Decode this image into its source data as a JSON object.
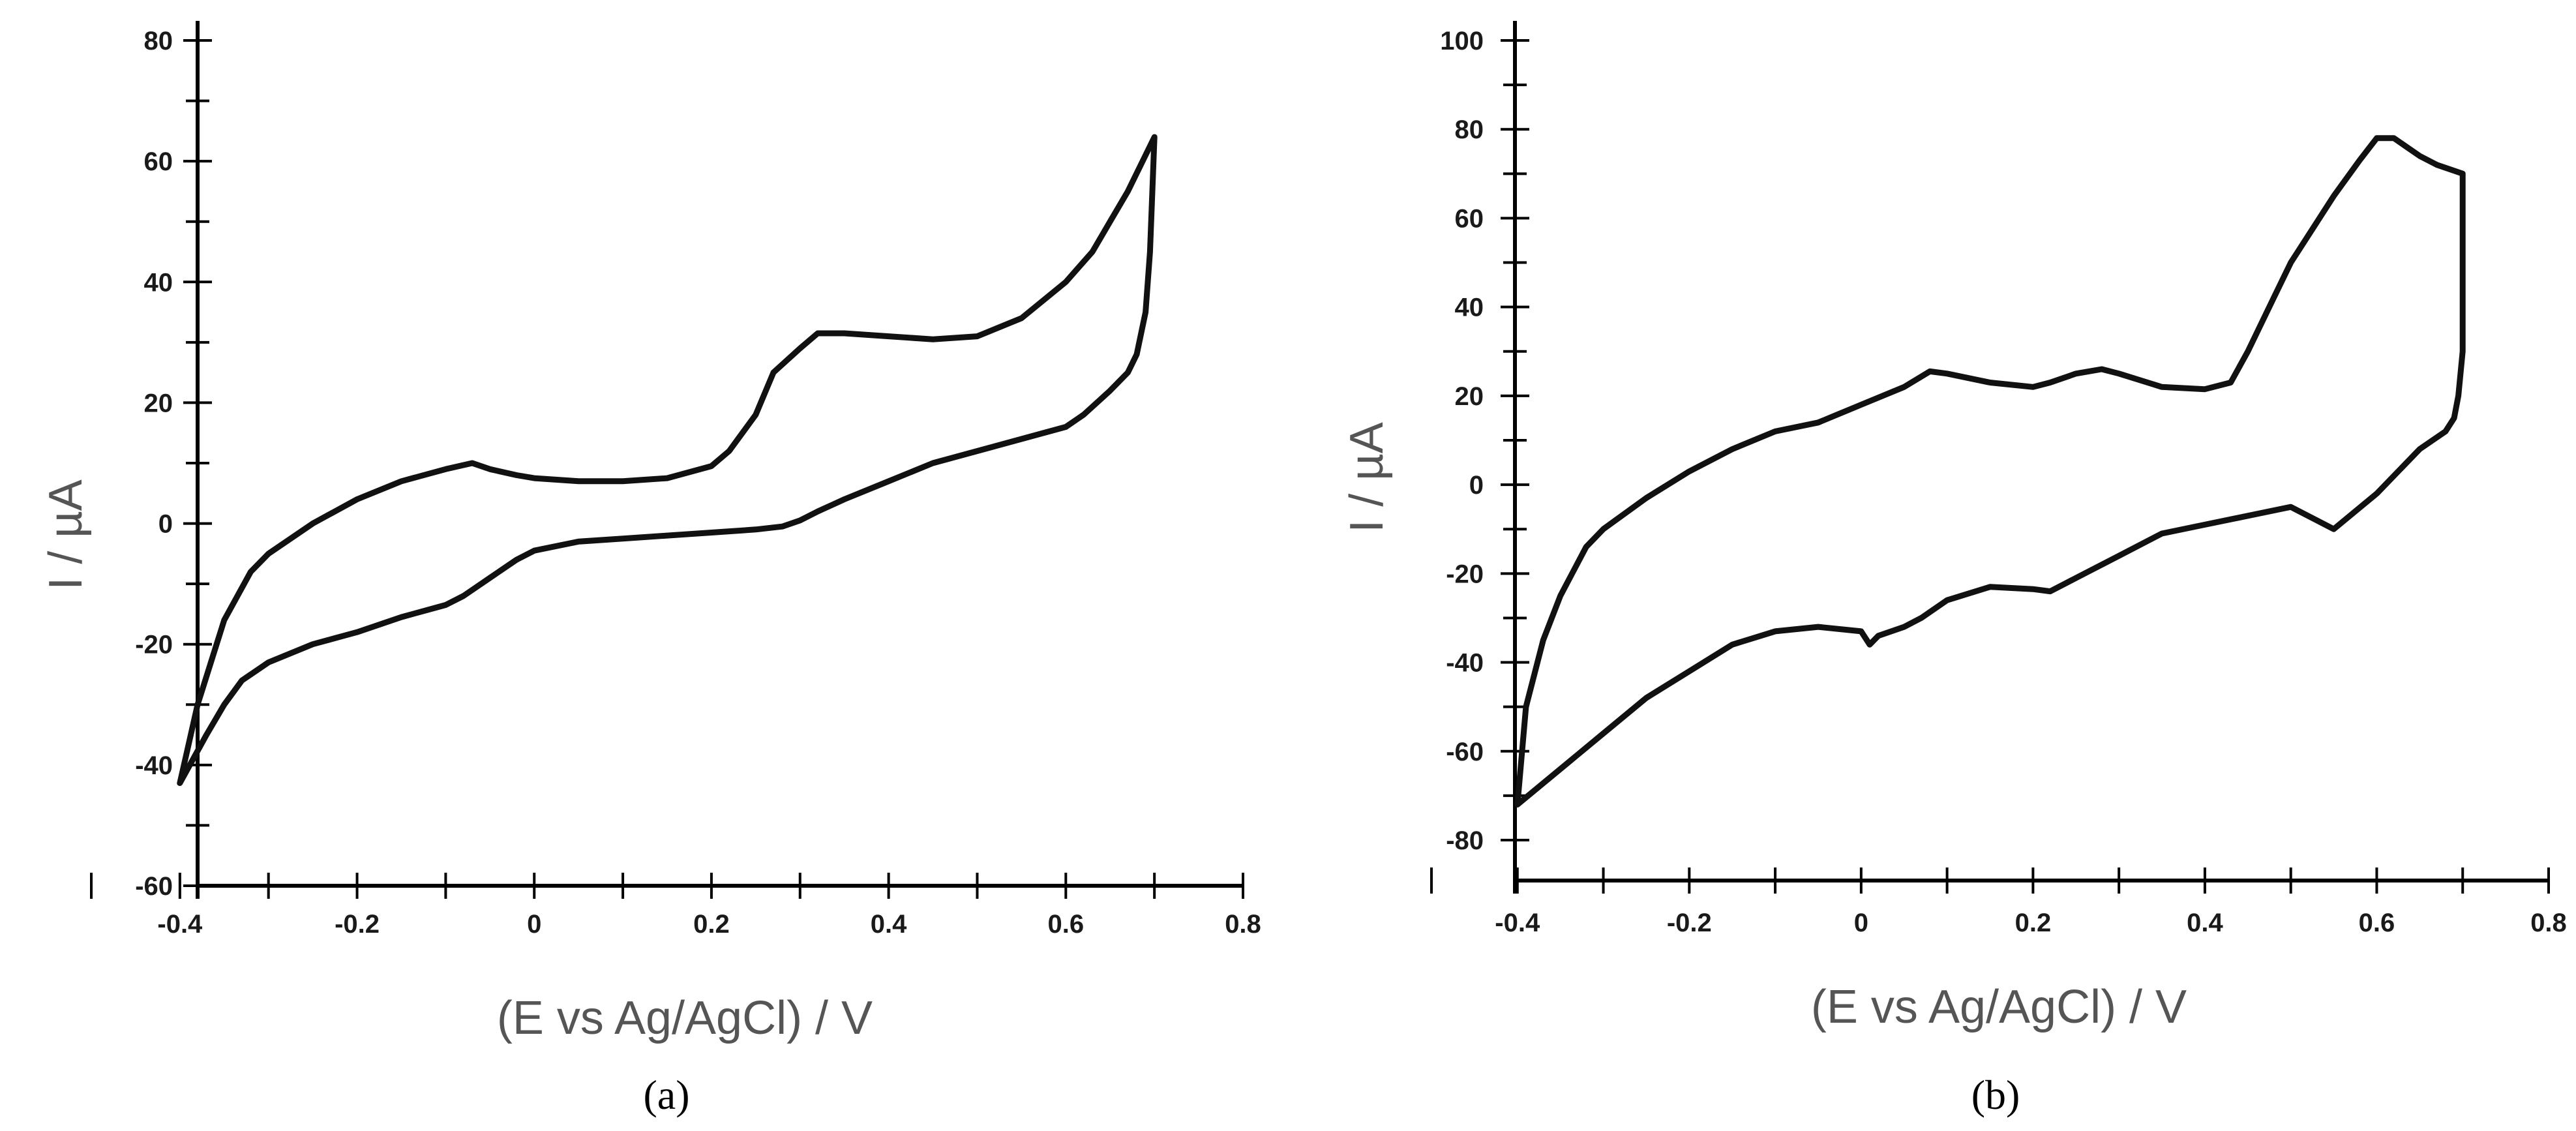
{
  "chart_data": [
    {
      "id": "a",
      "type": "line",
      "panel_label": "(a)",
      "xlabel": "(E vs Ag/AgCl) / V",
      "ylabel": "I / µA",
      "xlim": [
        -0.5,
        0.8
      ],
      "ylim": [
        -60,
        80
      ],
      "x_ticks": [
        -0.4,
        -0.2,
        0,
        0.2,
        0.4,
        0.6,
        0.8
      ],
      "x_tick_labels": [
        "-0.4",
        "-0.2",
        "0",
        "0.2",
        "0.4",
        "0.6",
        "0.8"
      ],
      "y_ticks": [
        -60,
        -40,
        -20,
        0,
        20,
        40,
        60,
        80
      ],
      "y_tick_labels": [
        "-60",
        "-40",
        "-20",
        "0",
        "20",
        "40",
        "60",
        "80"
      ],
      "grid": false,
      "series": [
        {
          "x": [
            -0.4,
            -0.38,
            -0.35,
            -0.32,
            -0.3,
            -0.25,
            -0.2,
            -0.15,
            -0.1,
            -0.07,
            -0.05,
            -0.02,
            0.0,
            0.05,
            0.1,
            0.15,
            0.2,
            0.22,
            0.25,
            0.27,
            0.3,
            0.32,
            0.35,
            0.4,
            0.45,
            0.5,
            0.55,
            0.6,
            0.63,
            0.65,
            0.67,
            0.7,
            0.695,
            0.69,
            0.68,
            0.67,
            0.65,
            0.62,
            0.6,
            0.55,
            0.5,
            0.45,
            0.4,
            0.35,
            0.32,
            0.3,
            0.28,
            0.25,
            0.2,
            0.15,
            0.1,
            0.05,
            0.0,
            -0.02,
            -0.05,
            -0.08,
            -0.1,
            -0.15,
            -0.2,
            -0.25,
            -0.3,
            -0.33,
            -0.35,
            -0.37,
            -0.4
          ],
          "y": [
            -43,
            -30,
            -16,
            -8,
            -5,
            0,
            4,
            7,
            9,
            10,
            9,
            8,
            7.5,
            7,
            7,
            7.5,
            9.5,
            12,
            18,
            25,
            29,
            31.5,
            31.5,
            31,
            30.5,
            31,
            34,
            40,
            45,
            50,
            55,
            64,
            45,
            35,
            28,
            25,
            22,
            18,
            16,
            14,
            12,
            10,
            7,
            4,
            2,
            0.5,
            -0.5,
            -1,
            -1.5,
            -2,
            -2.5,
            -3,
            -4.5,
            -6,
            -9,
            -12,
            -13.5,
            -15.5,
            -18,
            -20,
            -23,
            -26,
            -30,
            -35,
            -43
          ]
        }
      ]
    },
    {
      "id": "b",
      "type": "line",
      "panel_label": "(b)",
      "xlabel": "(E vs Ag/AgCl) / V",
      "ylabel": "I / µA",
      "xlim": [
        -0.5,
        0.8
      ],
      "ylim": [
        -90,
        100
      ],
      "x_ticks": [
        -0.4,
        -0.2,
        0,
        0.2,
        0.4,
        0.6,
        0.8
      ],
      "x_tick_labels": [
        "-0.4",
        "-0.2",
        "0",
        "0.2",
        "0.4",
        "0.6",
        "0.8"
      ],
      "y_ticks": [
        -80,
        -60,
        -40,
        -20,
        0,
        20,
        40,
        60,
        80,
        100
      ],
      "y_tick_labels": [
        "-80",
        "-60",
        "-40",
        "-20",
        "0",
        "20",
        "40",
        "60",
        "80",
        "100"
      ],
      "grid": false,
      "series": [
        {
          "x": [
            -0.4,
            -0.39,
            -0.37,
            -0.35,
            -0.32,
            -0.3,
            -0.25,
            -0.2,
            -0.15,
            -0.1,
            -0.05,
            0.0,
            0.05,
            0.08,
            0.1,
            0.15,
            0.2,
            0.22,
            0.25,
            0.28,
            0.3,
            0.35,
            0.4,
            0.43,
            0.45,
            0.48,
            0.5,
            0.55,
            0.58,
            0.6,
            0.62,
            0.65,
            0.67,
            0.7,
            0.7,
            0.695,
            0.69,
            0.68,
            0.65,
            0.6,
            0.55,
            0.5,
            0.45,
            0.4,
            0.35,
            0.3,
            0.25,
            0.22,
            0.2,
            0.15,
            0.1,
            0.07,
            0.05,
            0.02,
            0.01,
            0.0,
            -0.05,
            -0.1,
            -0.15,
            -0.2,
            -0.25,
            -0.3,
            -0.35,
            -0.4
          ],
          "y": [
            -72,
            -50,
            -35,
            -25,
            -14,
            -10,
            -3,
            3,
            8,
            12,
            14,
            18,
            22,
            25.5,
            25,
            23,
            22,
            23,
            25,
            26,
            25,
            22,
            21.5,
            23,
            30,
            42,
            50,
            65,
            73,
            78,
            78,
            74,
            72,
            70,
            30,
            20,
            15,
            12,
            8,
            -2,
            -10,
            -5,
            -7,
            -9,
            -11,
            -16,
            -21,
            -24,
            -23.5,
            -23,
            -26,
            -30,
            -32,
            -34,
            -36,
            -33,
            -32,
            -33,
            -36,
            -42,
            -48,
            -56,
            -64,
            -72
          ]
        }
      ]
    }
  ]
}
